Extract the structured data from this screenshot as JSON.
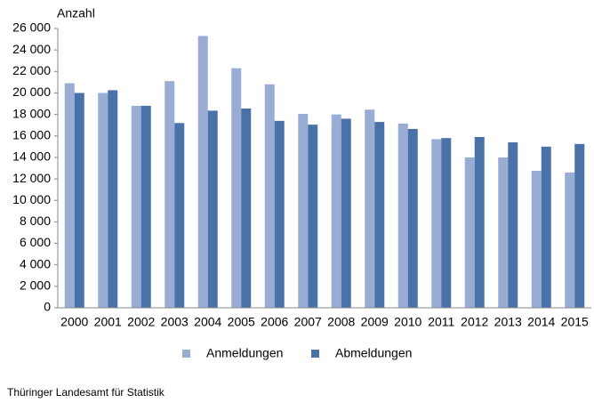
{
  "chart_data": {
    "type": "bar",
    "y_label": "Anzahl",
    "source": "Thüringer Landesamt für Statistik",
    "categories": [
      "2000",
      "2001",
      "2002",
      "2003",
      "2004",
      "2005",
      "2006",
      "2007",
      "2008",
      "2009",
      "2010",
      "2011",
      "2012",
      "2013",
      "2014",
      "2015"
    ],
    "series": [
      {
        "name": "Anmeldungen",
        "color": "#98acd4",
        "values": [
          20900,
          20000,
          18800,
          21100,
          25300,
          22300,
          20800,
          18050,
          18000,
          18450,
          17150,
          15700,
          14000,
          14000,
          12750,
          12600
        ]
      },
      {
        "name": "Abmeldungen",
        "color": "#4a72a8",
        "values": [
          20000,
          20250,
          18800,
          17200,
          18350,
          18550,
          17400,
          17050,
          17600,
          17300,
          16650,
          15800,
          15900,
          15400,
          15000,
          15250
        ]
      }
    ],
    "ylim": [
      0,
      26000
    ],
    "yticks": [
      0,
      {
        "value": 2000,
        "label": "2 000"
      },
      {
        "value": 4000,
        "label": "4 000"
      },
      {
        "value": 6000,
        "label": "6 000"
      },
      {
        "value": 8000,
        "label": "8 000"
      },
      {
        "value": 10000,
        "label": "10 000"
      },
      {
        "value": 12000,
        "label": "12 000"
      },
      {
        "value": 14000,
        "label": "14 000"
      },
      {
        "value": 16000,
        "label": "16 000"
      },
      {
        "value": 18000,
        "label": "18 000"
      },
      {
        "value": 20000,
        "label": "20 000"
      },
      {
        "value": 22000,
        "label": "22 000"
      },
      {
        "value": 24000,
        "label": "24 000"
      },
      {
        "value": 26000,
        "label": "26 000"
      }
    ],
    "grid": false,
    "legend": "bottom"
  }
}
